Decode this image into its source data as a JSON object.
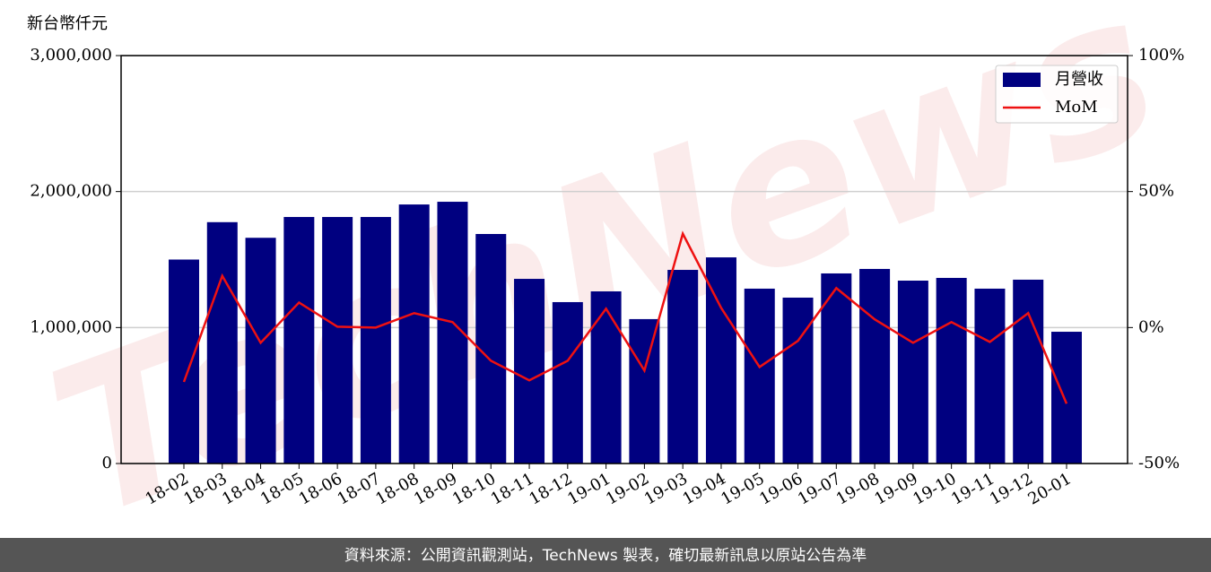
{
  "chart_data": {
    "type": "bar",
    "watermark": "TechNews",
    "ylabel": "新台幣仟元",
    "footer": "資料來源：公開資訊觀測站，TechNews 製表，確切最新訊息以原站公告為準",
    "categories": [
      "18-02",
      "18-03",
      "18-04",
      "18-05",
      "18-06",
      "18-07",
      "18-08",
      "18-09",
      "18-10",
      "18-11",
      "18-12",
      "19-01",
      "19-02",
      "19-03",
      "19-04",
      "19-05",
      "19-06",
      "19-07",
      "19-08",
      "19-09",
      "19-10",
      "19-11",
      "19-12",
      "20-01"
    ],
    "series": [
      {
        "name": "月營收",
        "type": "bar",
        "color": "#000080",
        "axis": "y",
        "values": [
          1500000,
          1775000,
          1660000,
          1813000,
          1813000,
          1813000,
          1905000,
          1925000,
          1688000,
          1358000,
          1187000,
          1266000,
          1062000,
          1424000,
          1516000,
          1286000,
          1220000,
          1398000,
          1431000,
          1345000,
          1365000,
          1286000,
          1352000,
          969000
        ]
      },
      {
        "name": "MoM",
        "type": "line",
        "color": "#ee1111",
        "axis": "y2",
        "values": [
          -20,
          19,
          -5.6,
          9.2,
          0.3,
          0,
          5.3,
          2,
          -12.2,
          -19.4,
          -12.2,
          6.9,
          -15.8,
          34.5,
          7.2,
          -14.5,
          -4.9,
          14.5,
          3,
          -5.6,
          2,
          -5.3,
          5.3,
          -28
        ]
      }
    ],
    "ylim": [
      0,
      3000000
    ],
    "yticks": [
      0,
      {
        "value": 1000000,
        "label": "1,000,000"
      },
      {
        "value": 2000000,
        "label": "2,000,000"
      },
      {
        "value": 3000000,
        "label": "3,000,000"
      }
    ],
    "y2lim": [
      -50,
      100
    ],
    "y2ticks": [
      {
        "value": -50,
        "label": "-50%"
      },
      {
        "value": 0,
        "label": "0%"
      },
      {
        "value": 50,
        "label": "50%"
      },
      {
        "value": 100,
        "label": "100%"
      }
    ],
    "grid": true,
    "legend": "upper right"
  }
}
